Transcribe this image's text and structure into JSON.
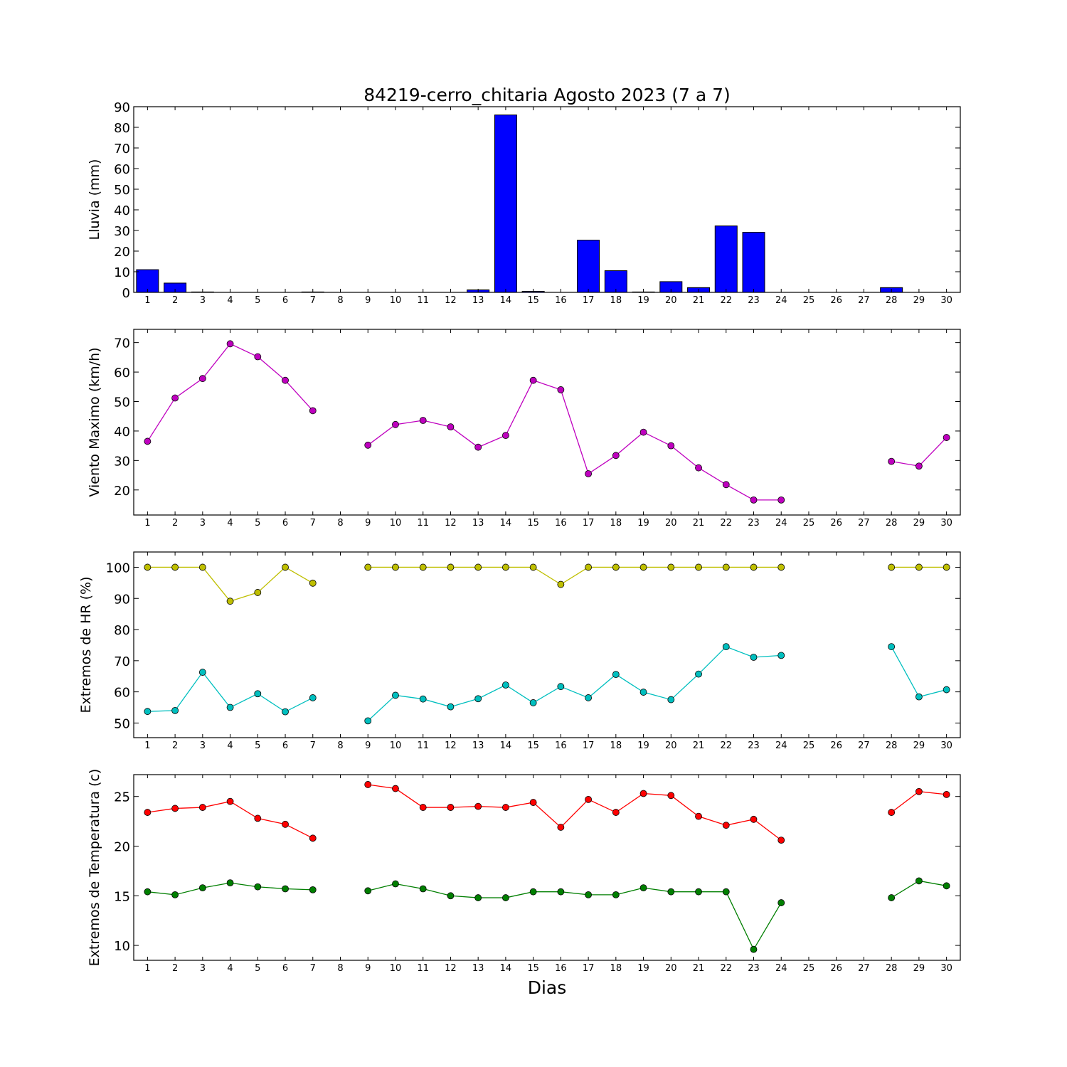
{
  "chart_data": {
    "title": "84219-cerro_chitaria Agosto 2023  (7 a 7)",
    "xlabel": "Dias",
    "days": [
      1,
      2,
      3,
      4,
      5,
      6,
      7,
      8,
      9,
      10,
      11,
      12,
      13,
      14,
      15,
      16,
      17,
      18,
      19,
      20,
      21,
      22,
      23,
      24,
      25,
      26,
      27,
      28,
      29,
      30
    ],
    "panels": [
      {
        "id": "lluvia",
        "type": "bar",
        "ylabel": "Lluvia (mm)",
        "ylim": [
          0,
          90
        ],
        "yticks": [
          0,
          10,
          20,
          30,
          40,
          50,
          60,
          70,
          80,
          90
        ],
        "series": [
          {
            "color": "#0000ff",
            "values": [
              11,
              4.5,
              0.2,
              0,
              0,
              0,
              0.2,
              0,
              0,
              0,
              0,
              0,
              1.2,
              86,
              0.5,
              0,
              25.3,
              10.5,
              0.2,
              5.2,
              2.3,
              32.2,
              29.1,
              0,
              0,
              0,
              0,
              2.3,
              0,
              0
            ]
          }
        ]
      },
      {
        "id": "viento",
        "type": "line",
        "ylabel": "Viento Maximo (km/h)",
        "ylim": [
          11.5,
          74.5
        ],
        "yticks": [
          20,
          30,
          40,
          50,
          60,
          70
        ],
        "series": [
          {
            "color": "#bf00bf",
            "values": [
              36.5,
              51.2,
              57.8,
              69.6,
              65.2,
              57.2,
              46.9,
              null,
              35.2,
              42.2,
              43.6,
              41.4,
              34.5,
              38.5,
              57.2,
              54.0,
              25.5,
              31.7,
              39.6,
              35.0,
              27.5,
              21.8,
              16.6,
              16.6,
              null,
              null,
              null,
              29.7,
              28.1,
              37.8
            ]
          }
        ]
      },
      {
        "id": "hr",
        "type": "line",
        "ylabel": "Extremos de HR (%)",
        "ylim": [
          45.3,
          104.9
        ],
        "yticks": [
          50,
          60,
          70,
          80,
          90,
          100
        ],
        "series": [
          {
            "color": "#bfbf00",
            "values": [
              100,
              100,
              100,
              89.1,
              91.9,
              100,
              94.9,
              null,
              100,
              100,
              100,
              100,
              100,
              100,
              100,
              94.5,
              100,
              100,
              100,
              100,
              100,
              100,
              100,
              100,
              null,
              null,
              null,
              100,
              100,
              100
            ]
          },
          {
            "color": "#00bfbf",
            "values": [
              53.7,
              54.0,
              66.3,
              55.0,
              59.4,
              53.6,
              58.1,
              null,
              50.7,
              58.9,
              57.7,
              55.2,
              57.8,
              62.2,
              56.5,
              61.7,
              58.1,
              65.6,
              59.9,
              57.5,
              65.7,
              74.5,
              71.1,
              71.7,
              null,
              null,
              null,
              74.5,
              58.4,
              60.7
            ]
          }
        ]
      },
      {
        "id": "temperatura",
        "type": "line",
        "ylabel": "Extremos de Temperatura (c)",
        "ylim": [
          8.5,
          27.2
        ],
        "yticks": [
          10,
          15,
          20,
          25
        ],
        "series": [
          {
            "color": "#ff0000",
            "values": [
              23.4,
              23.8,
              23.9,
              24.5,
              22.8,
              22.2,
              20.8,
              null,
              26.2,
              25.8,
              23.9,
              23.9,
              24.0,
              23.9,
              24.4,
              21.9,
              24.7,
              23.4,
              25.3,
              25.1,
              23.0,
              22.1,
              22.7,
              20.6,
              null,
              null,
              null,
              23.4,
              25.5,
              25.2
            ]
          },
          {
            "color": "#007f00",
            "values": [
              15.4,
              15.1,
              15.8,
              16.3,
              15.9,
              15.7,
              15.6,
              null,
              15.5,
              16.2,
              15.7,
              15.0,
              14.8,
              14.8,
              15.4,
              15.4,
              15.1,
              15.1,
              15.8,
              15.4,
              15.4,
              15.4,
              9.6,
              14.3,
              null,
              null,
              null,
              14.8,
              16.5,
              16.0
            ]
          }
        ]
      }
    ]
  }
}
